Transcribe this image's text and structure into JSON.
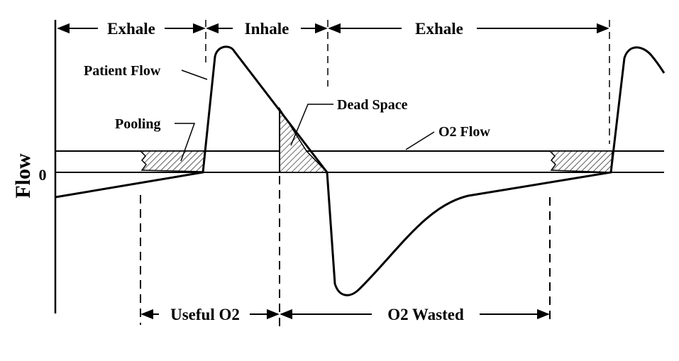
{
  "diagram": {
    "y_axis_label": "Flow",
    "zero_label": "0",
    "phases": {
      "exhale_1": "Exhale",
      "inhale": "Inhale",
      "exhale_2": "Exhale"
    },
    "callouts": {
      "patient_flow": "Patient Flow",
      "pooling": "Pooling",
      "dead_space": "Dead Space",
      "o2_flow": "O2 Flow"
    },
    "bottom_spans": {
      "useful_o2": "Useful O2",
      "o2_wasted": "O2 Wasted"
    },
    "colors": {
      "line": "#000000",
      "background": "#ffffff"
    }
  }
}
